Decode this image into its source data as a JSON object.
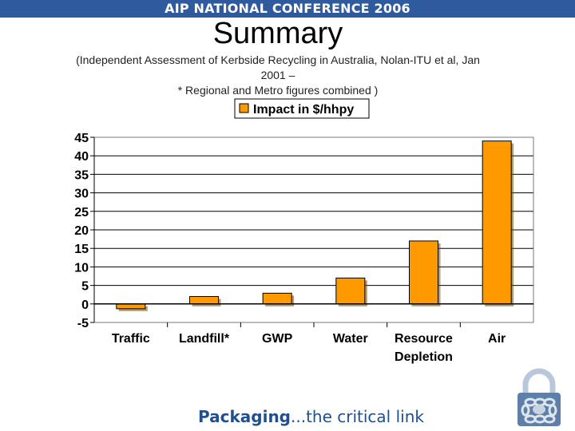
{
  "header": {
    "banner": "AIP NATIONAL CONFERENCE 2006"
  },
  "slide": {
    "title": "Summary",
    "subtitle_line1": "(Independent Assessment of Kerbside Recycling in Australia, Nolan-ITU et al, Jan",
    "subtitle_line2": "2001 –",
    "subtitle_line3": "* Regional and Metro figures combined )"
  },
  "chart_data": {
    "type": "bar",
    "categories": [
      "Traffic",
      "Landfill*",
      "GWP",
      "Water",
      "Resource Depletion",
      "Air"
    ],
    "series": [
      {
        "name": "Impact in $/hhpy",
        "values": [
          -1.3,
          2.0,
          2.9,
          7.0,
          17.0,
          44.0
        ]
      }
    ],
    "ylim": [
      -5,
      45
    ],
    "yticks": [
      "45",
      "40",
      "35",
      "30",
      "25",
      "20",
      "15",
      "10",
      "5",
      "0",
      "-5"
    ],
    "bar_color": "#ff9900",
    "legend_position": "top",
    "grid": true
  },
  "footer": {
    "brand": "Packaging",
    "tagline": "...the critical link"
  },
  "icons": {
    "logo": "padlock-chain-icon"
  }
}
